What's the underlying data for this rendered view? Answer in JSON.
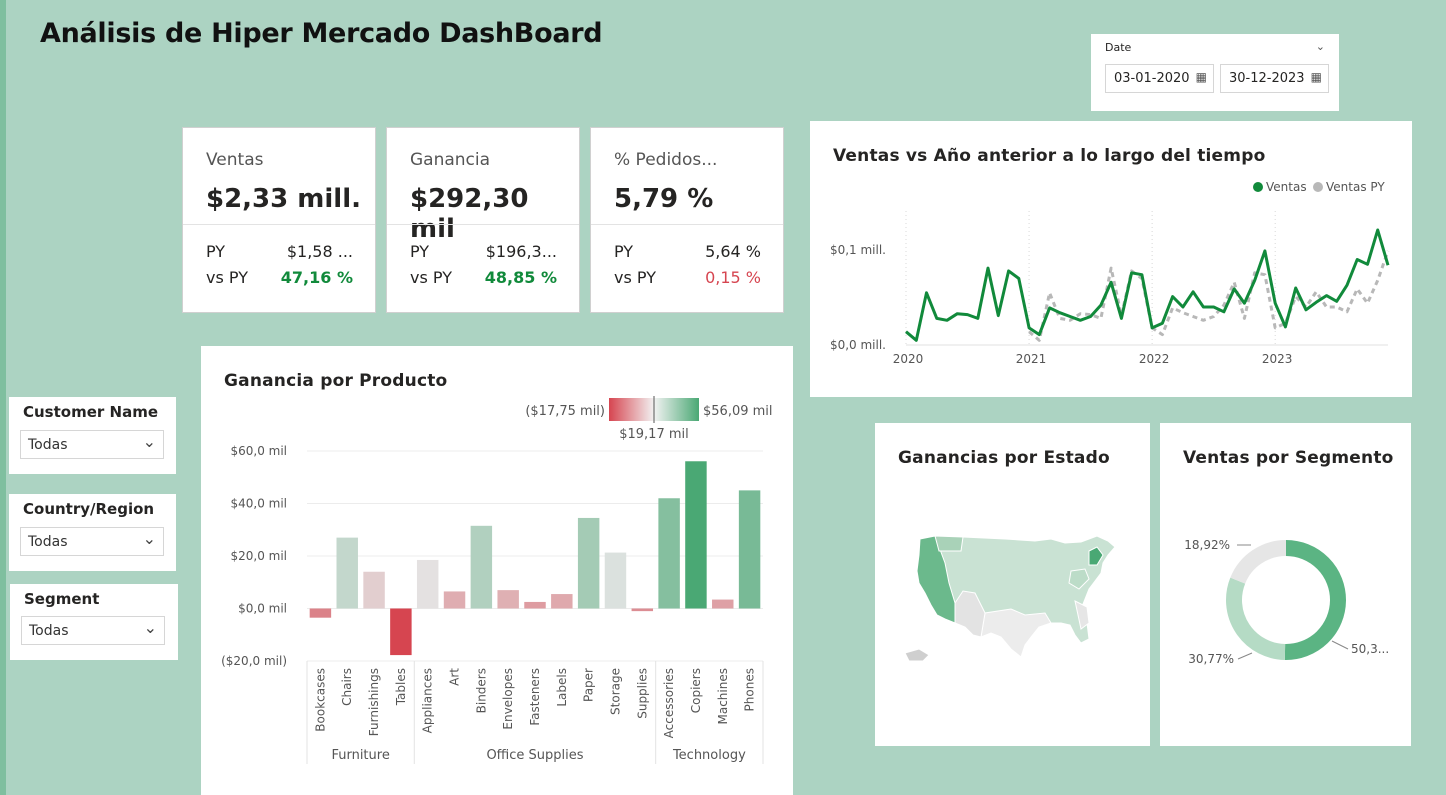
{
  "page": {
    "title": "Análisis de Hiper Mercado DashBoard"
  },
  "date_slicer": {
    "label": "Date",
    "start": "03-01-2020",
    "end": "30-12-2023"
  },
  "kpis": [
    {
      "title": "Ventas",
      "value": "$2,33 mill.",
      "py_label": "PY",
      "py_value": "$1,58 ...",
      "vs_label": "vs PY",
      "vs_value": "47,16 %",
      "vs_color": "#118a3b"
    },
    {
      "title": "Ganancia",
      "value": "$292,30 mil",
      "py_label": "PY",
      "py_value": "$196,3...",
      "vs_label": "vs PY",
      "vs_value": "48,85 %",
      "vs_color": "#118a3b"
    },
    {
      "title": "% Pedidos...",
      "value": "5,79 %",
      "py_label": "PY",
      "py_value": "5,64 %",
      "vs_label": "vs PY",
      "vs_value": "0,15 %",
      "vs_color": "#d64550"
    }
  ],
  "slicers": [
    {
      "label": "Customer Name",
      "value": "Todas"
    },
    {
      "label": "Country/Region",
      "value": "Todas"
    },
    {
      "label": "Segment",
      "value": "Todas"
    }
  ],
  "line_chart": {
    "title": "Ventas vs Año anterior a lo largo del tiempo",
    "legend": [
      {
        "name": "Ventas",
        "color": "#118a3b"
      },
      {
        "name": "Ventas PY",
        "color": "#b8b8b8"
      }
    ],
    "y_ticks": [
      "$0,0 mill.",
      "$0,1 mill."
    ],
    "x_ticks": [
      "2020",
      "2021",
      "2022",
      "2023"
    ],
    "ylim": [
      0,
      0.12
    ],
    "chart_data": {
      "type": "line",
      "x_unit": "month",
      "x": [
        "2020-01",
        "2020-02",
        "2020-03",
        "2020-04",
        "2020-05",
        "2020-06",
        "2020-07",
        "2020-08",
        "2020-09",
        "2020-10",
        "2020-11",
        "2020-12",
        "2021-01",
        "2021-02",
        "2021-03",
        "2021-04",
        "2021-05",
        "2021-06",
        "2021-07",
        "2021-08",
        "2021-09",
        "2021-10",
        "2021-11",
        "2021-12",
        "2022-01",
        "2022-02",
        "2022-03",
        "2022-04",
        "2022-05",
        "2022-06",
        "2022-07",
        "2022-08",
        "2022-09",
        "2022-10",
        "2022-11",
        "2022-12",
        "2023-01",
        "2023-02",
        "2023-03",
        "2023-04",
        "2023-05",
        "2023-06",
        "2023-07",
        "2023-08",
        "2023-09",
        "2023-10",
        "2023-11",
        "2023-12"
      ],
      "series": [
        {
          "name": "Ventas",
          "values": [
            0.014,
            0.005,
            0.055,
            0.028,
            0.026,
            0.033,
            0.032,
            0.028,
            0.081,
            0.031,
            0.078,
            0.07,
            0.018,
            0.011,
            0.039,
            0.034,
            0.03,
            0.026,
            0.03,
            0.042,
            0.066,
            0.028,
            0.076,
            0.074,
            0.018,
            0.023,
            0.051,
            0.04,
            0.056,
            0.04,
            0.04,
            0.035,
            0.059,
            0.044,
            0.068,
            0.099,
            0.044,
            0.019,
            0.06,
            0.037,
            0.045,
            0.052,
            0.046,
            0.063,
            0.09,
            0.085,
            0.121,
            0.084
          ]
        },
        {
          "name": "Ventas PY",
          "values": [
            null,
            null,
            null,
            null,
            null,
            null,
            null,
            null,
            null,
            null,
            null,
            null,
            0.014,
            0.005,
            0.055,
            0.028,
            0.026,
            0.033,
            0.032,
            0.028,
            0.081,
            0.031,
            0.078,
            0.07,
            0.018,
            0.011,
            0.039,
            0.034,
            0.03,
            0.026,
            0.03,
            0.042,
            0.066,
            0.028,
            0.076,
            0.074,
            0.018,
            0.023,
            0.051,
            0.04,
            0.056,
            0.04,
            0.04,
            0.035,
            0.059,
            0.044,
            0.068,
            0.099
          ]
        }
      ]
    }
  },
  "bar_chart": {
    "title": "Ganancia por Producto",
    "legend": {
      "min_label": "($17,75 mil)",
      "mid_label": "$19,17 mil",
      "max_label": "$56,09 mil"
    },
    "y_ticks": [
      "($20,0 mil)",
      "$0,0 mil",
      "$20,0 mil",
      "$40,0 mil",
      "$60,0 mil"
    ],
    "ylim": [
      -20,
      60
    ],
    "chart_data": {
      "type": "bar",
      "unit": "mil",
      "groups": [
        {
          "name": "Furniture",
          "categories": [
            "Bookcases",
            "Chairs",
            "Furnishings",
            "Tables"
          ],
          "values": [
            -3.5,
            27.0,
            14.0,
            -17.75
          ]
        },
        {
          "name": "Office Supplies",
          "categories": [
            "Appliances",
            "Art",
            "Binders",
            "Envelopes",
            "Fasteners",
            "Labels",
            "Paper",
            "Storage",
            "Supplies"
          ],
          "values": [
            18.5,
            6.5,
            31.5,
            7.0,
            2.5,
            5.5,
            34.5,
            21.3,
            -1.0
          ]
        },
        {
          "name": "Technology",
          "categories": [
            "Accessories",
            "Copiers",
            "Machines",
            "Phones"
          ],
          "values": [
            42.0,
            56.09,
            3.4,
            45.0
          ]
        }
      ]
    },
    "colors": {
      "neg": "#d64550",
      "mid": "#e4e4e4",
      "pos": "#4aa874"
    }
  },
  "map": {
    "title": "Ganancias por Estado"
  },
  "donut": {
    "title": "Ventas por Segmento",
    "chart_data": {
      "type": "pie",
      "slices": [
        {
          "label": "50,3...",
          "value": 50.31,
          "color": "#5bb483"
        },
        {
          "label": "30,77%",
          "value": 30.77,
          "color": "#b5dbc5"
        },
        {
          "label": "18,92%",
          "value": 18.92,
          "color": "#e6e6e6"
        }
      ]
    }
  }
}
